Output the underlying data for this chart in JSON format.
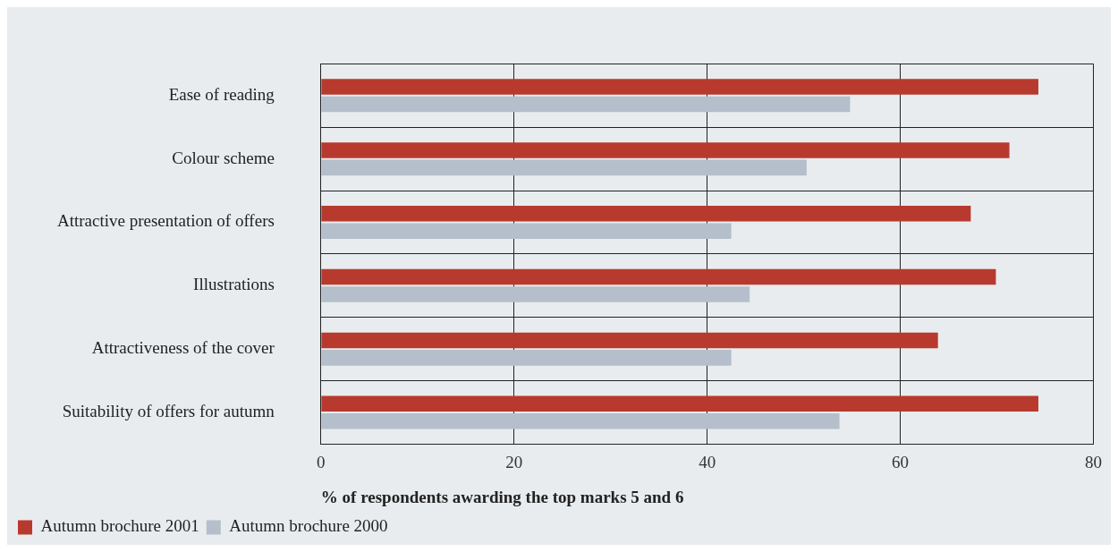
{
  "chart_data": {
    "type": "bar",
    "orientation": "horizontal",
    "categories": [
      "Ease of reading",
      "Colour scheme",
      "Attractive presentation of offers",
      "Illustrations",
      "Attractiveness of the cover",
      "Suitability of offers for autumn"
    ],
    "series": [
      {
        "name": "Autumn brochure 2001",
        "color": "#b83a2e",
        "values": [
          74.3,
          71.3,
          67.3,
          69.9,
          63.9,
          74.3
        ]
      },
      {
        "name": "Autumn brochure 2000",
        "color": "#b4bfcb",
        "values": [
          54.8,
          50.3,
          42.5,
          44.4,
          42.5,
          53.7
        ]
      }
    ],
    "xlabel": "% of respondents awarding the top marks 5 and 6",
    "xlim": [
      0,
      80
    ],
    "xticks": [
      0,
      20,
      40,
      60,
      80
    ],
    "grid": true,
    "legend": "bottom left"
  }
}
